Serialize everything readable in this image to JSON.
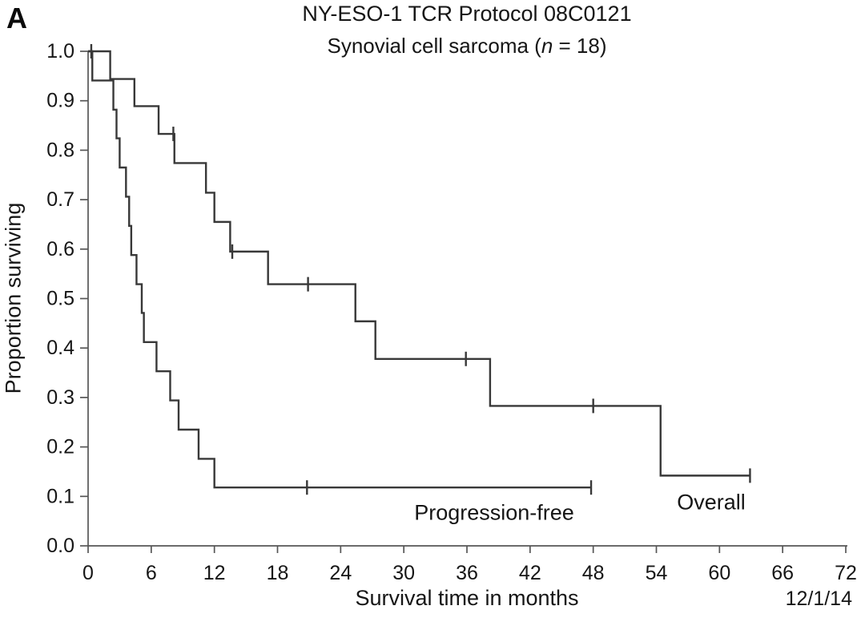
{
  "panel_label": "A",
  "header": {
    "title": "NY-ESO-1 TCR Protocol 08C0121",
    "subtitle_prefix": "Synovial cell sarcoma (",
    "subtitle_n": "n",
    "subtitle_suffix": " = 18)"
  },
  "footer": {
    "date_note": "12/1/14"
  },
  "chart_data": {
    "type": "line",
    "subtype": "kaplan-meier-step",
    "title": "NY-ESO-1 TCR Protocol 08C0121",
    "subtitle": "Synovial cell sarcoma (n = 18)",
    "xlabel": "Survival time in months",
    "ylabel": "Proportion surviving",
    "xlim": [
      0,
      72
    ],
    "ylim": [
      0.0,
      1.0
    ],
    "x_ticks": [
      0,
      6,
      12,
      18,
      24,
      30,
      36,
      42,
      48,
      54,
      60,
      66,
      72
    ],
    "x_tick_labels": [
      "0",
      "6",
      "12",
      "18",
      "24",
      "30",
      "36",
      "42",
      "48",
      "54",
      "60",
      "66",
      "72"
    ],
    "y_ticks": [
      0.0,
      0.1,
      0.2,
      0.3,
      0.4,
      0.5,
      0.6,
      0.7,
      0.8,
      0.9,
      1.0
    ],
    "y_tick_labels": [
      "0.0",
      "0.1",
      "0.2",
      "0.3",
      "0.4",
      "0.5",
      "0.6",
      "0.7",
      "0.8",
      "0.9",
      "1.0"
    ],
    "grid": false,
    "legend": "inline-labels",
    "line_color": "#383838",
    "axis_color": "#565656",
    "series": [
      {
        "name": "Overall",
        "points": [
          [
            0,
            1.0
          ],
          [
            2.1,
            0.944
          ],
          [
            4.4,
            0.889
          ],
          [
            6.7,
            0.833
          ],
          [
            8.2,
            0.774
          ],
          [
            11.2,
            0.714
          ],
          [
            12.0,
            0.655
          ],
          [
            13.5,
            0.595
          ],
          [
            17.1,
            0.529
          ],
          [
            25.4,
            0.454
          ],
          [
            27.3,
            0.378
          ],
          [
            38.2,
            0.283
          ],
          [
            54.4,
            0.142
          ]
        ],
        "end_time": 62.9,
        "censors": [
          [
            8.1,
            0.833
          ],
          [
            13.7,
            0.595
          ],
          [
            20.9,
            0.529
          ],
          [
            35.9,
            0.378
          ],
          [
            48.0,
            0.283
          ],
          [
            62.9,
            0.142
          ]
        ]
      },
      {
        "name": "Progression-free",
        "points": [
          [
            0,
            1.0
          ],
          [
            0.4,
            0.941
          ],
          [
            2.4,
            0.882
          ],
          [
            2.7,
            0.824
          ],
          [
            3.0,
            0.765
          ],
          [
            3.6,
            0.706
          ],
          [
            3.9,
            0.647
          ],
          [
            4.1,
            0.588
          ],
          [
            4.6,
            0.529
          ],
          [
            5.1,
            0.471
          ],
          [
            5.3,
            0.412
          ],
          [
            6.5,
            0.353
          ],
          [
            7.8,
            0.294
          ],
          [
            8.6,
            0.235
          ],
          [
            10.5,
            0.176
          ],
          [
            12.0,
            0.118
          ]
        ],
        "end_time": 47.8,
        "censors": [
          [
            0.3,
            1.0
          ],
          [
            20.8,
            0.118
          ],
          [
            47.8,
            0.118
          ]
        ]
      }
    ]
  }
}
